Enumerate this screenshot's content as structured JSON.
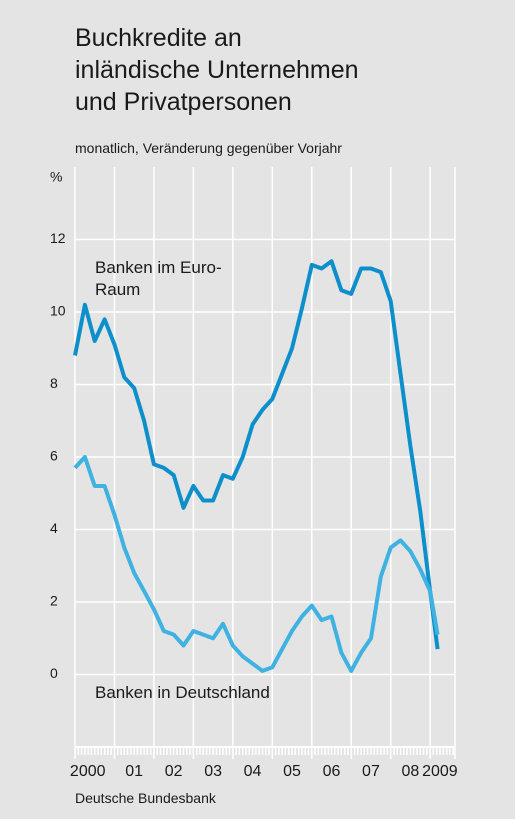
{
  "chart_data": {
    "type": "line",
    "title_lines": [
      "Buchkredite an",
      "inländische Unternehmen",
      "und Privatpersonen"
    ],
    "subtitle": "monatlich, Veränderung gegenüber Vorjahr",
    "y_unit": "%",
    "source": "Deutsche Bundesbank",
    "x": [
      2000,
      2000.25,
      2000.5,
      2000.75,
      2001,
      2001.25,
      2001.5,
      2001.75,
      2002,
      2002.25,
      2002.5,
      2002.75,
      2003,
      2003.25,
      2003.5,
      2003.75,
      2004,
      2004.25,
      2004.5,
      2004.75,
      2005,
      2005.25,
      2005.5,
      2005.75,
      2006,
      2006.25,
      2006.5,
      2006.75,
      2007,
      2007.25,
      2007.5,
      2007.75,
      2008,
      2008.25,
      2008.5,
      2008.75,
      2009,
      2009.19
    ],
    "series": [
      {
        "name": "Banken im Euro-Raum",
        "color": "#0d8fcc",
        "values": [
          8.8,
          10.2,
          9.2,
          9.8,
          9.1,
          8.2,
          7.9,
          7.0,
          5.8,
          5.7,
          5.5,
          4.6,
          5.2,
          4.8,
          4.8,
          5.5,
          5.4,
          6.0,
          6.9,
          7.3,
          7.6,
          8.3,
          9.0,
          10.1,
          11.3,
          11.2,
          11.4,
          10.6,
          10.5,
          11.2,
          11.2,
          11.1,
          10.3,
          8.3,
          6.3,
          4.5,
          2.3,
          0.7
        ]
      },
      {
        "name": "Banken in Deutschland",
        "color": "#3fb2e2",
        "values": [
          5.7,
          6.0,
          5.2,
          5.2,
          4.4,
          3.5,
          2.8,
          2.3,
          1.8,
          1.2,
          1.1,
          0.8,
          1.2,
          1.1,
          1.0,
          1.4,
          0.8,
          0.5,
          0.3,
          0.1,
          0.2,
          0.7,
          1.2,
          1.6,
          1.9,
          1.5,
          1.6,
          0.6,
          0.1,
          0.6,
          1.0,
          2.7,
          3.5,
          3.7,
          3.4,
          2.9,
          2.3,
          1.1
        ]
      }
    ],
    "xlim": [
      2000,
      2009.63
    ],
    "xticks": [
      {
        "value": 2000.5,
        "label": "2000"
      },
      {
        "value": 2001.5,
        "label": "01"
      },
      {
        "value": 2002.5,
        "label": "02"
      },
      {
        "value": 2003.5,
        "label": "03"
      },
      {
        "value": 2004.5,
        "label": "04"
      },
      {
        "value": 2005.5,
        "label": "05"
      },
      {
        "value": 2006.5,
        "label": "06"
      },
      {
        "value": 2007.5,
        "label": "07"
      },
      {
        "value": 2008.5,
        "label": "08"
      },
      {
        "value": 2009.5,
        "label": "2009"
      }
    ],
    "ylim": [
      -2,
      14
    ],
    "yticks": [
      0,
      2,
      4,
      6,
      8,
      10,
      12
    ],
    "grid": true
  }
}
